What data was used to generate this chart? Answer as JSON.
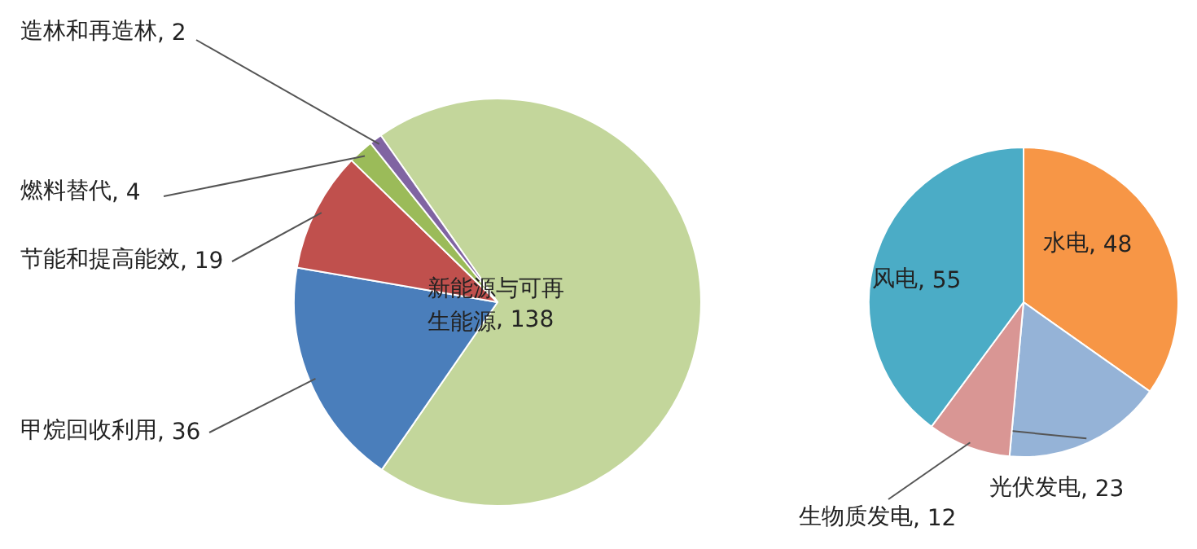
{
  "chart_data": [
    {
      "type": "pie",
      "categories": [
        "新能源与可再生能源",
        "甲烷回收利用",
        "节能和提高能效",
        "燃料替代",
        "造林和再造林"
      ],
      "values": [
        138,
        36,
        19,
        4,
        2
      ],
      "value_labels": [
        ", 138",
        ", 36",
        ", 19",
        ", 4",
        ", 2"
      ],
      "colors": [
        "#c3d69b",
        "#4a7ebb",
        "#c0504d",
        "#9bbb59",
        "#8064a2"
      ]
    },
    {
      "type": "pie",
      "categories": [
        "水电",
        "光伏发电",
        "生物质发电",
        "风电"
      ],
      "values": [
        48,
        23,
        12,
        55
      ],
      "value_labels": [
        ", 48",
        ", 23",
        ", 12",
        ", 55"
      ],
      "colors": [
        "#f79646",
        "#95b3d7",
        "#d99694",
        "#4bacc6"
      ]
    }
  ]
}
